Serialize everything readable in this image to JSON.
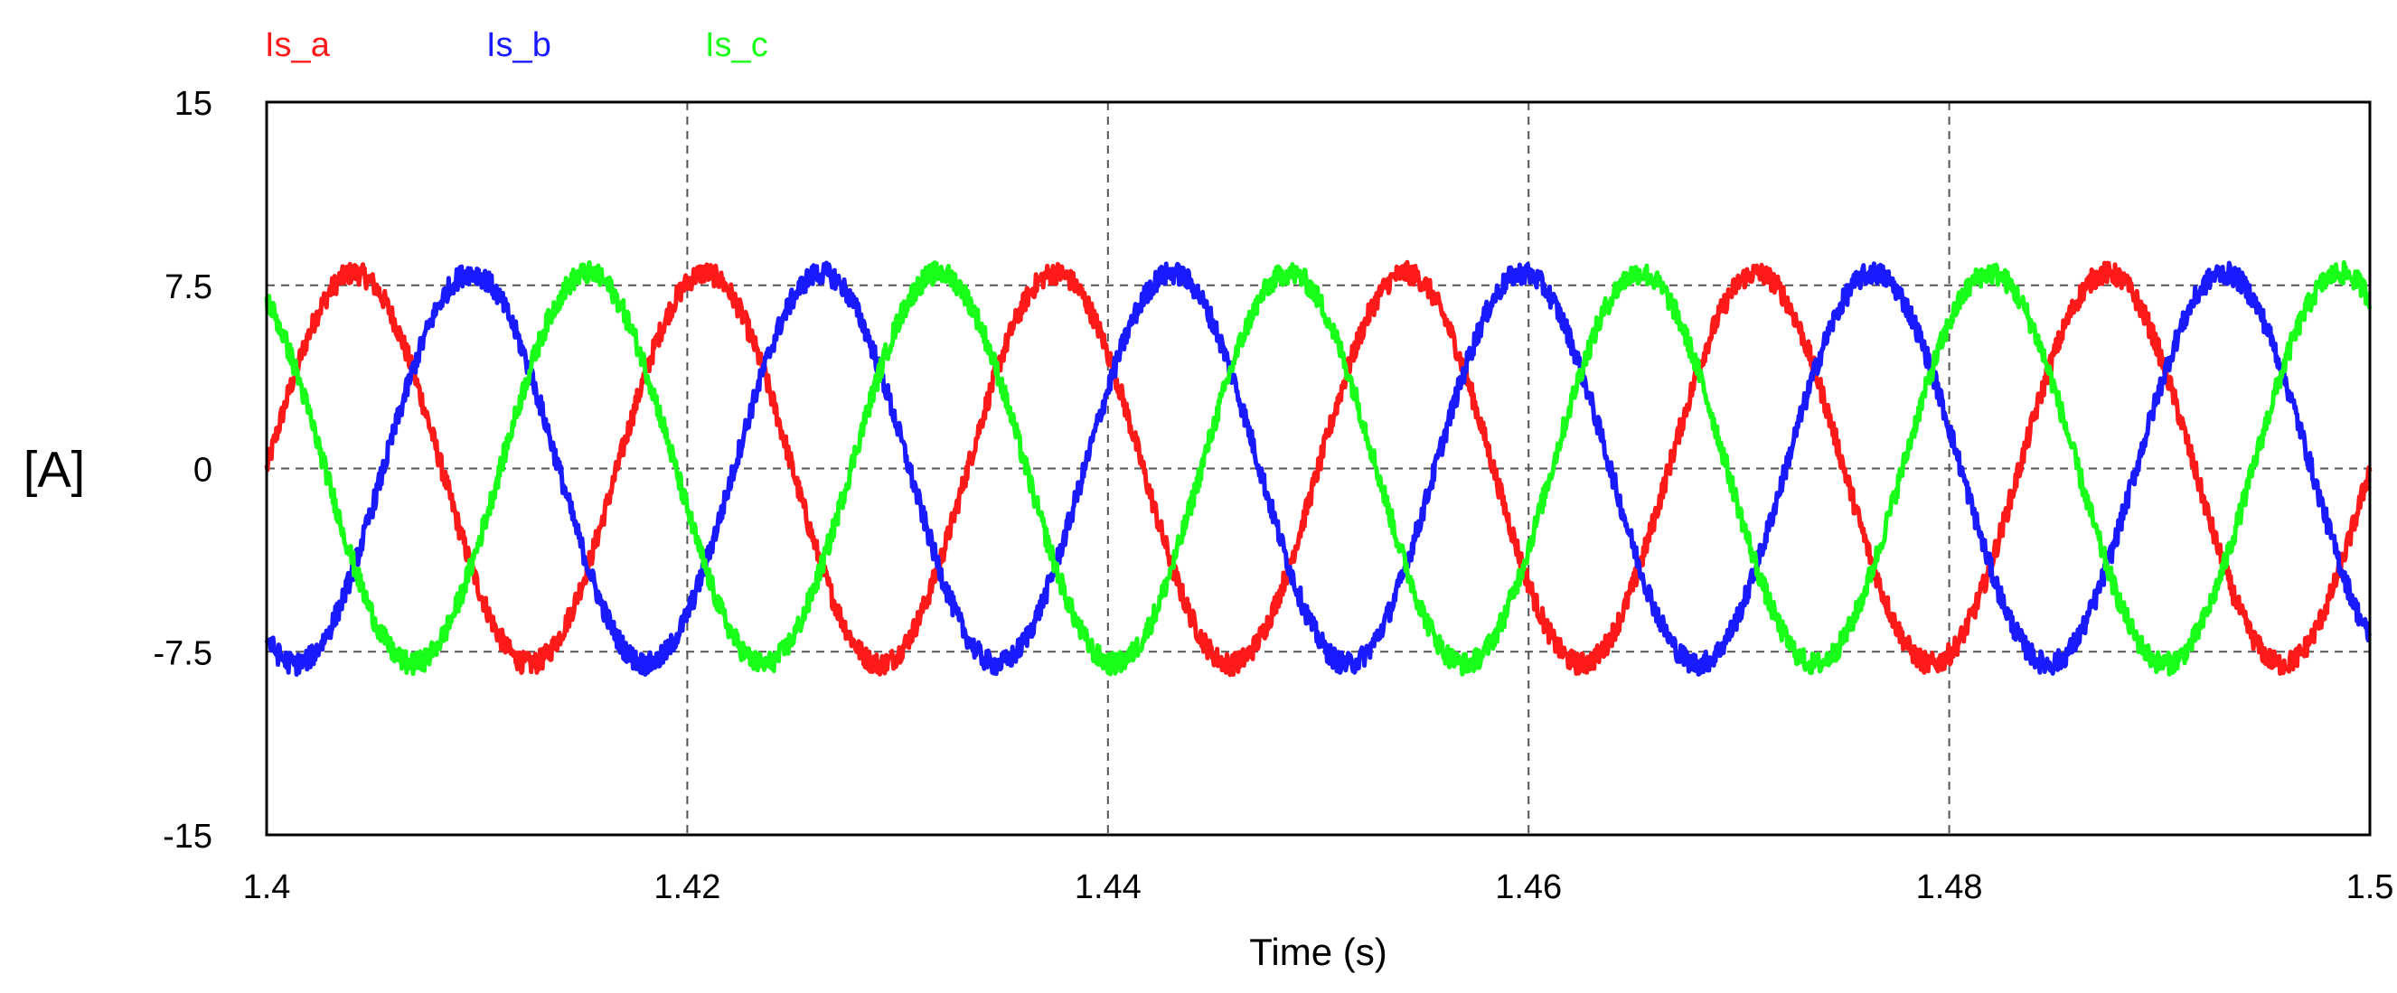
{
  "chart_data": {
    "type": "line",
    "title": "",
    "xlabel": "Time (s)",
    "ylabel": "[A]",
    "xlim": [
      1.4,
      1.5
    ],
    "ylim": [
      -15,
      15
    ],
    "xticks": [
      1.4,
      1.42,
      1.44,
      1.46,
      1.48,
      1.5
    ],
    "xtick_labels": [
      "1.4",
      "1.42",
      "1.44",
      "1.46",
      "1.48",
      "1.5"
    ],
    "yticks": [
      15,
      7.5,
      0,
      -7.5,
      -15
    ],
    "ytick_labels": [
      "15",
      "7.5",
      "0",
      "-7.5",
      "-15"
    ],
    "grid": "dashed",
    "legend_position": "top-left, above plot",
    "series": [
      {
        "name": "Is_a",
        "color": "#ff1a1a",
        "frequency_hz": 60,
        "amplitude": 8.0,
        "phase_deg": 0,
        "values": [
          [
            1.4,
            0.0
          ],
          [
            1.4042,
            8.0
          ],
          [
            1.4083,
            0.0
          ],
          [
            1.4125,
            -8.0
          ],
          [
            1.4167,
            0.0
          ],
          [
            1.4208,
            8.0
          ],
          [
            1.425,
            0.0
          ],
          [
            1.4292,
            -8.0
          ],
          [
            1.4333,
            0.0
          ],
          [
            1.4375,
            8.0
          ],
          [
            1.4417,
            0.0
          ],
          [
            1.4458,
            -8.0
          ],
          [
            1.45,
            0.0
          ],
          [
            1.4542,
            8.0
          ],
          [
            1.4583,
            0.0
          ],
          [
            1.4625,
            -8.0
          ],
          [
            1.4667,
            0.0
          ],
          [
            1.4708,
            8.0
          ],
          [
            1.475,
            0.0
          ],
          [
            1.4792,
            -8.0
          ],
          [
            1.4833,
            0.0
          ],
          [
            1.4875,
            8.0
          ],
          [
            1.4917,
            0.0
          ],
          [
            1.4958,
            -8.0
          ],
          [
            1.5,
            0.0
          ]
        ]
      },
      {
        "name": "Is_b",
        "color": "#1a1aff",
        "frequency_hz": 60,
        "amplitude": 8.0,
        "phase_deg": -120,
        "values": [
          [
            1.4,
            -6.9
          ],
          [
            1.4014,
            -8.0
          ],
          [
            1.4097,
            8.0
          ],
          [
            1.4181,
            -8.0
          ],
          [
            1.4264,
            8.0
          ],
          [
            1.4347,
            -8.0
          ],
          [
            1.4431,
            8.0
          ],
          [
            1.4514,
            -8.0
          ],
          [
            1.4597,
            8.0
          ],
          [
            1.4681,
            -8.0
          ],
          [
            1.4764,
            8.0
          ],
          [
            1.4847,
            -8.0
          ],
          [
            1.4931,
            8.0
          ],
          [
            1.5,
            -6.9
          ]
        ]
      },
      {
        "name": "Is_c",
        "color": "#1aff1a",
        "frequency_hz": 60,
        "amplitude": 8.0,
        "phase_deg": 120,
        "values": [
          [
            1.4,
            6.9
          ],
          [
            1.4069,
            -8.0
          ],
          [
            1.4153,
            8.0
          ],
          [
            1.4236,
            -8.0
          ],
          [
            1.4319,
            8.0
          ],
          [
            1.4403,
            -8.0
          ],
          [
            1.4486,
            8.0
          ],
          [
            1.4569,
            -8.0
          ],
          [
            1.4653,
            8.0
          ],
          [
            1.4736,
            -8.0
          ],
          [
            1.4819,
            8.0
          ],
          [
            1.4903,
            -8.0
          ],
          [
            1.4986,
            8.0
          ],
          [
            1.5,
            6.9
          ]
        ]
      }
    ]
  }
}
